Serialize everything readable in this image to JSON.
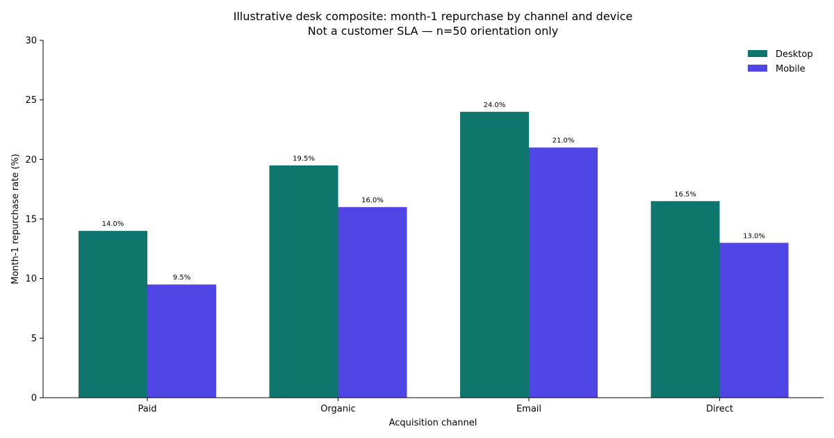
{
  "chart_data": {
    "type": "bar",
    "title_line1": "Illustrative desk composite: month-1 repurchase by channel and device",
    "title_line2": "Not a customer SLA — n=50 orientation only",
    "xlabel": "Acquisition channel",
    "ylabel": "Month-1 repurchase rate (%)",
    "categories": [
      "Paid",
      "Organic",
      "Email",
      "Direct"
    ],
    "series": [
      {
        "name": "Desktop",
        "color": "#0f766e",
        "values": [
          14.0,
          19.5,
          24.0,
          16.5
        ]
      },
      {
        "name": "Mobile",
        "color": "#4f46e5",
        "values": [
          9.5,
          16.0,
          21.0,
          13.0
        ]
      }
    ],
    "ylim": [
      0,
      30
    ],
    "yticks": [
      0,
      5,
      10,
      15,
      20,
      25,
      30
    ],
    "value_label_suffix": "%",
    "grid": false,
    "legend_position": "top-right"
  }
}
